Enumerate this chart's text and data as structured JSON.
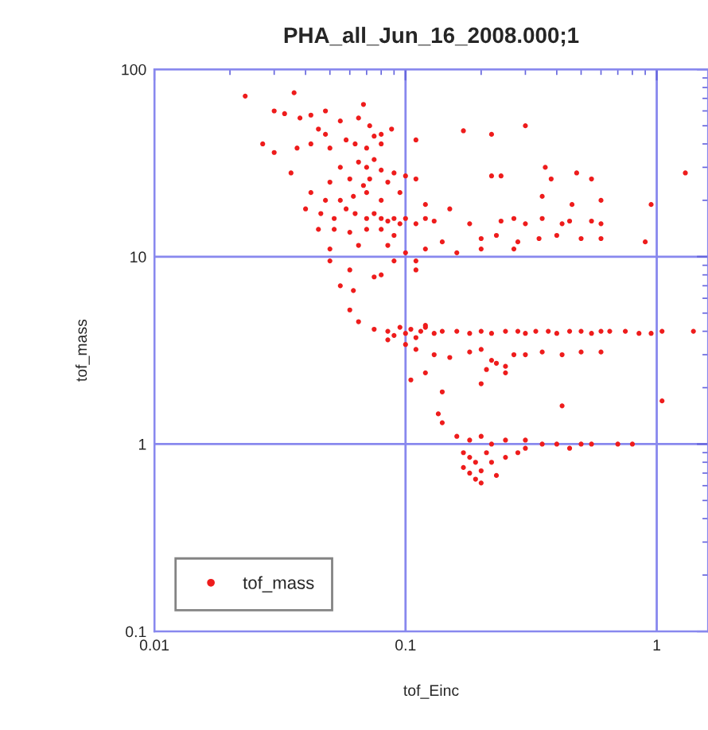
{
  "chart_data": {
    "type": "scatter",
    "title": "PHA_all_Jun_16_2008.000;1",
    "xlabel": "tof_Einc",
    "ylabel": "tof_mass",
    "log": "xy",
    "xlim": [
      0.01,
      1.6
    ],
    "ylim": [
      0.1,
      100
    ],
    "xticks": [
      0.01,
      0.1,
      1
    ],
    "yticks": [
      0.1,
      1,
      10,
      100
    ],
    "grid": true,
    "legend": "bottom left",
    "marker": "circle",
    "series": [
      {
        "name": "tof_mass",
        "color": "#ee1c1c",
        "x": [
          0.023,
          0.036,
          0.03,
          0.033,
          0.038,
          0.042,
          0.048,
          0.055,
          0.065,
          0.072,
          0.08,
          0.088,
          0.027,
          0.03,
          0.037,
          0.042,
          0.048,
          0.05,
          0.058,
          0.063,
          0.07,
          0.075,
          0.08,
          0.068,
          0.045,
          0.11,
          0.17,
          0.22,
          0.3,
          0.035,
          0.055,
          0.065,
          0.07,
          0.075,
          0.08,
          0.05,
          0.06,
          0.068,
          0.072,
          0.085,
          0.09,
          0.1,
          0.042,
          0.048,
          0.055,
          0.062,
          0.07,
          0.08,
          0.095,
          0.04,
          0.046,
          0.052,
          0.058,
          0.063,
          0.07,
          0.075,
          0.08,
          0.085,
          0.09,
          0.095,
          0.1,
          0.11,
          0.12,
          0.13,
          0.12,
          0.15,
          0.045,
          0.052,
          0.06,
          0.07,
          0.08,
          0.09,
          0.05,
          0.065,
          0.085,
          0.1,
          0.12,
          0.14,
          0.11,
          0.22,
          0.24,
          0.36,
          0.38,
          0.48,
          0.55,
          0.35,
          0.46,
          0.6,
          0.18,
          0.24,
          0.27,
          0.3,
          0.35,
          0.42,
          0.45,
          0.55,
          0.6,
          0.2,
          0.23,
          0.28,
          0.34,
          0.4,
          0.5,
          0.6,
          0.9,
          0.95,
          0.16,
          0.2,
          0.27,
          1.3,
          0.05,
          0.06,
          0.08,
          0.055,
          0.062,
          0.075,
          0.09,
          0.11,
          0.11,
          0.06,
          0.065,
          0.12,
          0.075,
          0.085,
          0.09,
          0.095,
          0.1,
          0.105,
          0.11,
          0.115,
          0.12,
          0.13,
          0.14,
          0.16,
          0.18,
          0.2,
          0.22,
          0.25,
          0.28,
          0.3,
          0.33,
          0.37,
          0.4,
          0.45,
          0.5,
          0.55,
          0.6,
          0.65,
          0.75,
          0.85,
          0.95,
          1.05,
          1.4,
          0.085,
          0.1,
          0.11,
          0.13,
          0.15,
          0.18,
          0.2,
          0.22,
          0.21,
          0.23,
          0.25,
          0.27,
          0.3,
          0.35,
          0.42,
          0.5,
          0.6,
          0.25,
          0.2,
          0.105,
          0.12,
          0.14,
          0.135,
          0.14,
          0.42,
          1.05,
          0.16,
          0.18,
          0.2,
          0.22,
          0.25,
          0.3,
          0.35,
          0.4,
          0.45,
          0.5,
          0.55,
          0.7,
          0.8,
          0.17,
          0.18,
          0.19,
          0.17,
          0.18,
          0.2,
          0.19,
          0.2,
          0.22,
          0.21,
          0.25,
          0.28,
          0.23,
          0.3
        ],
        "values": [
          72,
          75,
          60,
          58,
          55,
          57,
          60,
          53,
          55,
          50,
          45,
          48,
          40,
          36,
          38,
          40,
          45,
          38,
          42,
          40,
          38,
          44,
          40,
          65,
          48,
          42,
          47,
          45,
          50,
          28,
          30,
          32,
          30,
          33,
          29,
          25,
          26,
          24,
          26,
          25,
          28,
          27,
          22,
          20,
          20,
          21,
          22,
          20,
          22,
          18,
          17,
          16,
          18,
          17,
          16,
          17,
          16,
          15.5,
          16,
          15,
          16,
          15,
          16,
          15.5,
          19,
          18,
          14,
          14,
          13.5,
          14,
          14,
          13,
          11,
          11.5,
          11.5,
          10.5,
          11,
          12,
          26,
          27,
          27,
          30,
          26,
          28,
          26,
          21,
          19,
          20,
          15,
          15.5,
          16,
          15,
          16,
          15,
          15.5,
          15.5,
          15,
          12.5,
          13,
          12,
          12.5,
          13,
          12.5,
          12.5,
          12,
          19,
          10.5,
          11,
          11,
          28,
          9.5,
          8.5,
          8.0,
          7,
          6.6,
          7.8,
          9.5,
          9.5,
          8.5,
          5.2,
          4.5,
          4.3,
          4.1,
          4.0,
          3.8,
          4.2,
          3.9,
          4.1,
          3.7,
          4.0,
          4.2,
          3.9,
          4.0,
          4.0,
          3.9,
          4.0,
          3.9,
          4.0,
          4.0,
          3.9,
          4.0,
          4.0,
          3.9,
          4.0,
          4.0,
          3.9,
          4.0,
          4.0,
          4.0,
          3.9,
          3.9,
          4.0,
          4.0,
          3.6,
          3.4,
          3.2,
          3.0,
          2.9,
          3.1,
          3.2,
          2.8,
          2.5,
          2.7,
          2.6,
          3.0,
          3.0,
          3.1,
          3.0,
          3.1,
          3.1,
          2.4,
          2.1,
          2.2,
          2.4,
          1.9,
          1.45,
          1.3,
          1.6,
          1.7,
          1.1,
          1.05,
          1.1,
          1.0,
          1.05,
          1.05,
          1.0,
          1.0,
          0.95,
          1.0,
          1.0,
          1.0,
          1.0,
          0.9,
          0.85,
          0.8,
          0.75,
          0.7,
          0.72,
          0.65,
          0.62,
          0.8,
          0.9,
          0.85,
          0.9,
          0.68,
          0.95
        ]
      }
    ]
  }
}
